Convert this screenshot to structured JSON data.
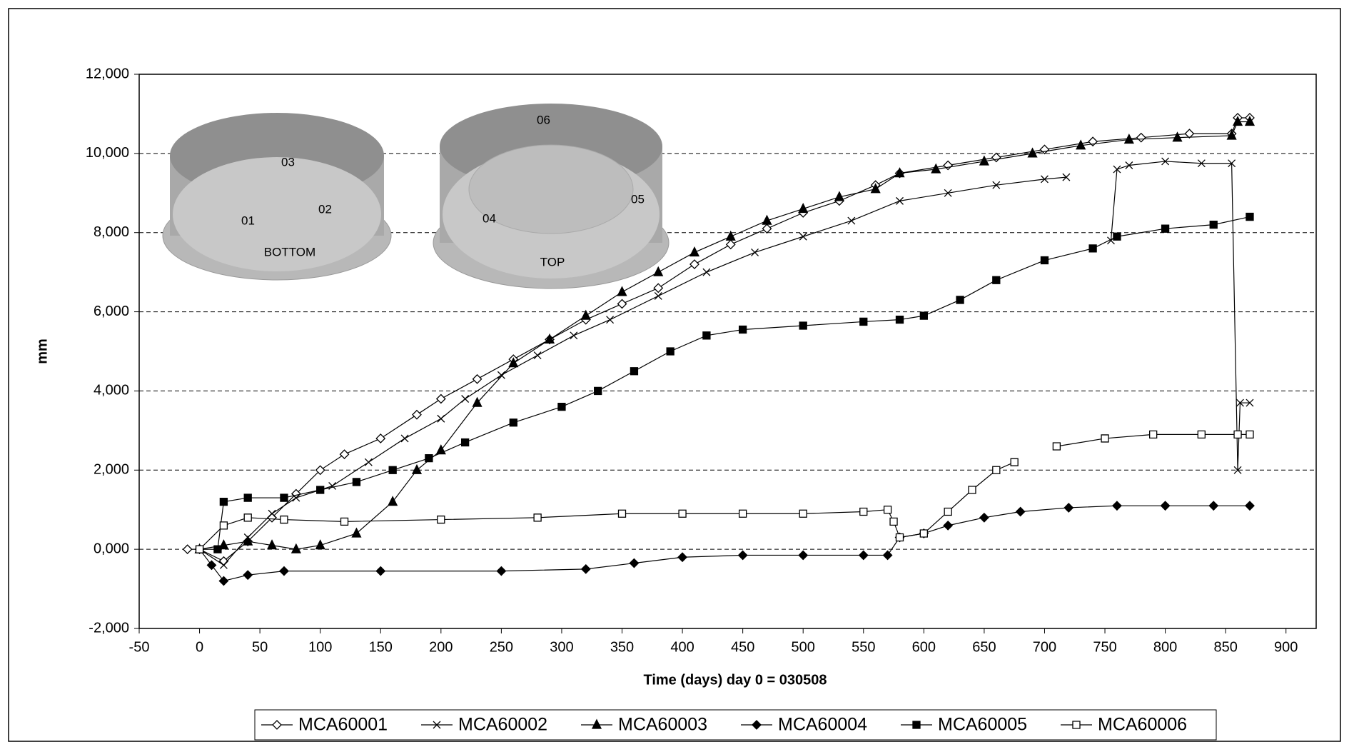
{
  "chart_data": {
    "type": "line",
    "xlabel": "Time (days) day 0 = 030508",
    "ylabel": "mm",
    "xlim": [
      -50,
      925
    ],
    "xticks": [
      -50,
      0,
      50,
      100,
      150,
      200,
      250,
      300,
      350,
      400,
      450,
      500,
      550,
      600,
      650,
      700,
      750,
      800,
      850,
      900
    ],
    "ylim": [
      -2,
      12
    ],
    "yticks": [
      {
        "value": -2,
        "label": "-2,000"
      },
      {
        "value": 0,
        "label": "0,000"
      },
      {
        "value": 2,
        "label": "2,000"
      },
      {
        "value": 4,
        "label": "4,000"
      },
      {
        "value": 6,
        "label": "6,000"
      },
      {
        "value": 8,
        "label": "8,000"
      },
      {
        "value": 10,
        "label": "10,000"
      },
      {
        "value": 12,
        "label": "12,000"
      }
    ],
    "grid": true,
    "legend": "bottom",
    "annotations": [
      "03",
      "01",
      "02",
      "BOTTOM",
      "06",
      "04",
      "05",
      "TOP"
    ],
    "series": [
      {
        "name": "MCA60001",
        "color": "#000000",
        "marker": "open-diamond",
        "x": [
          -10,
          0,
          20,
          40,
          60,
          80,
          100,
          120,
          150,
          180,
          200,
          230,
          260,
          290,
          320,
          350,
          380,
          410,
          440,
          470,
          500,
          530,
          560,
          580,
          620,
          660,
          700,
          740,
          780,
          820,
          855,
          860,
          870
        ],
        "values": [
          0,
          0,
          -0.3,
          0.2,
          0.8,
          1.4,
          2.0,
          2.4,
          2.8,
          3.4,
          3.8,
          4.3,
          4.8,
          5.3,
          5.8,
          6.2,
          6.6,
          7.2,
          7.7,
          8.1,
          8.5,
          8.8,
          9.2,
          9.5,
          9.7,
          9.9,
          10.1,
          10.3,
          10.4,
          10.5,
          10.5,
          10.9,
          10.9
        ]
      },
      {
        "name": "MCA60002",
        "color": "#000000",
        "marker": "cross",
        "x": [
          0,
          20,
          40,
          60,
          80,
          110,
          140,
          170,
          200,
          220,
          250,
          280,
          310,
          340,
          380,
          420,
          460,
          500,
          540,
          580,
          620,
          660,
          700,
          718,
          740,
          755,
          760,
          770,
          800,
          830,
          855,
          860,
          862,
          870
        ],
        "values": [
          0,
          -0.4,
          0.3,
          0.9,
          1.3,
          1.6,
          2.2,
          2.8,
          3.3,
          3.8,
          4.4,
          4.9,
          5.4,
          5.8,
          6.4,
          7.0,
          7.5,
          7.9,
          8.3,
          8.8,
          9.0,
          9.2,
          9.35,
          9.4,
          null,
          7.8,
          9.6,
          9.7,
          9.8,
          9.75,
          9.75,
          2.0,
          3.7,
          3.7
        ]
      },
      {
        "name": "MCA60003",
        "color": "#000000",
        "marker": "triangle",
        "x": [
          0,
          20,
          40,
          60,
          80,
          100,
          130,
          160,
          180,
          200,
          230,
          260,
          290,
          320,
          350,
          380,
          410,
          440,
          470,
          500,
          530,
          560,
          580,
          610,
          650,
          690,
          730,
          770,
          810,
          855,
          860,
          870
        ],
        "values": [
          0,
          0.1,
          0.2,
          0.1,
          0,
          0.1,
          0.4,
          1.2,
          2.0,
          2.5,
          3.7,
          4.7,
          5.3,
          5.9,
          6.5,
          7.0,
          7.5,
          7.9,
          8.3,
          8.6,
          8.9,
          9.1,
          9.5,
          9.6,
          9.8,
          10.0,
          10.2,
          10.35,
          10.4,
          10.45,
          10.8,
          10.8
        ]
      },
      {
        "name": "MCA60004",
        "color": "#000000",
        "marker": "diamond",
        "x": [
          0,
          10,
          20,
          40,
          70,
          150,
          250,
          320,
          360,
          400,
          450,
          500,
          550,
          570,
          580,
          600,
          620,
          650,
          680,
          720,
          760,
          800,
          840,
          870
        ],
        "values": [
          0,
          -0.4,
          -0.8,
          -0.65,
          -0.55,
          -0.55,
          -0.55,
          -0.5,
          -0.35,
          -0.2,
          -0.15,
          -0.15,
          -0.15,
          -0.15,
          0.3,
          0.4,
          0.6,
          0.8,
          0.95,
          1.05,
          1.1,
          1.1,
          1.1,
          1.1
        ]
      },
      {
        "name": "MCA60005",
        "color": "#000000",
        "marker": "square",
        "x": [
          0,
          15,
          20,
          40,
          70,
          100,
          130,
          160,
          190,
          220,
          260,
          300,
          330,
          360,
          390,
          420,
          450,
          500,
          550,
          580,
          600,
          630,
          660,
          700,
          740,
          760,
          800,
          840,
          870
        ],
        "values": [
          0,
          0,
          1.2,
          1.3,
          1.3,
          1.5,
          1.7,
          2.0,
          2.3,
          2.7,
          3.2,
          3.6,
          4.0,
          4.5,
          5.0,
          5.4,
          5.55,
          5.65,
          5.75,
          5.8,
          5.9,
          6.3,
          6.8,
          7.3,
          7.6,
          7.9,
          8.1,
          8.2,
          8.4
        ]
      },
      {
        "name": "MCA60006",
        "color": "#000000",
        "marker": "open-square",
        "x": [
          0,
          20,
          40,
          70,
          120,
          200,
          280,
          350,
          400,
          450,
          500,
          550,
          570,
          575,
          580,
          600,
          620,
          640,
          660,
          675,
          690,
          710,
          750,
          790,
          830,
          860,
          870
        ],
        "values": [
          0,
          0.6,
          0.8,
          0.75,
          0.7,
          0.75,
          0.8,
          0.9,
          0.9,
          0.9,
          0.9,
          0.95,
          1.0,
          0.7,
          0.3,
          0.4,
          0.95,
          1.5,
          2.0,
          2.2,
          null,
          2.6,
          2.8,
          2.9,
          2.9,
          2.9,
          2.9
        ]
      }
    ]
  }
}
